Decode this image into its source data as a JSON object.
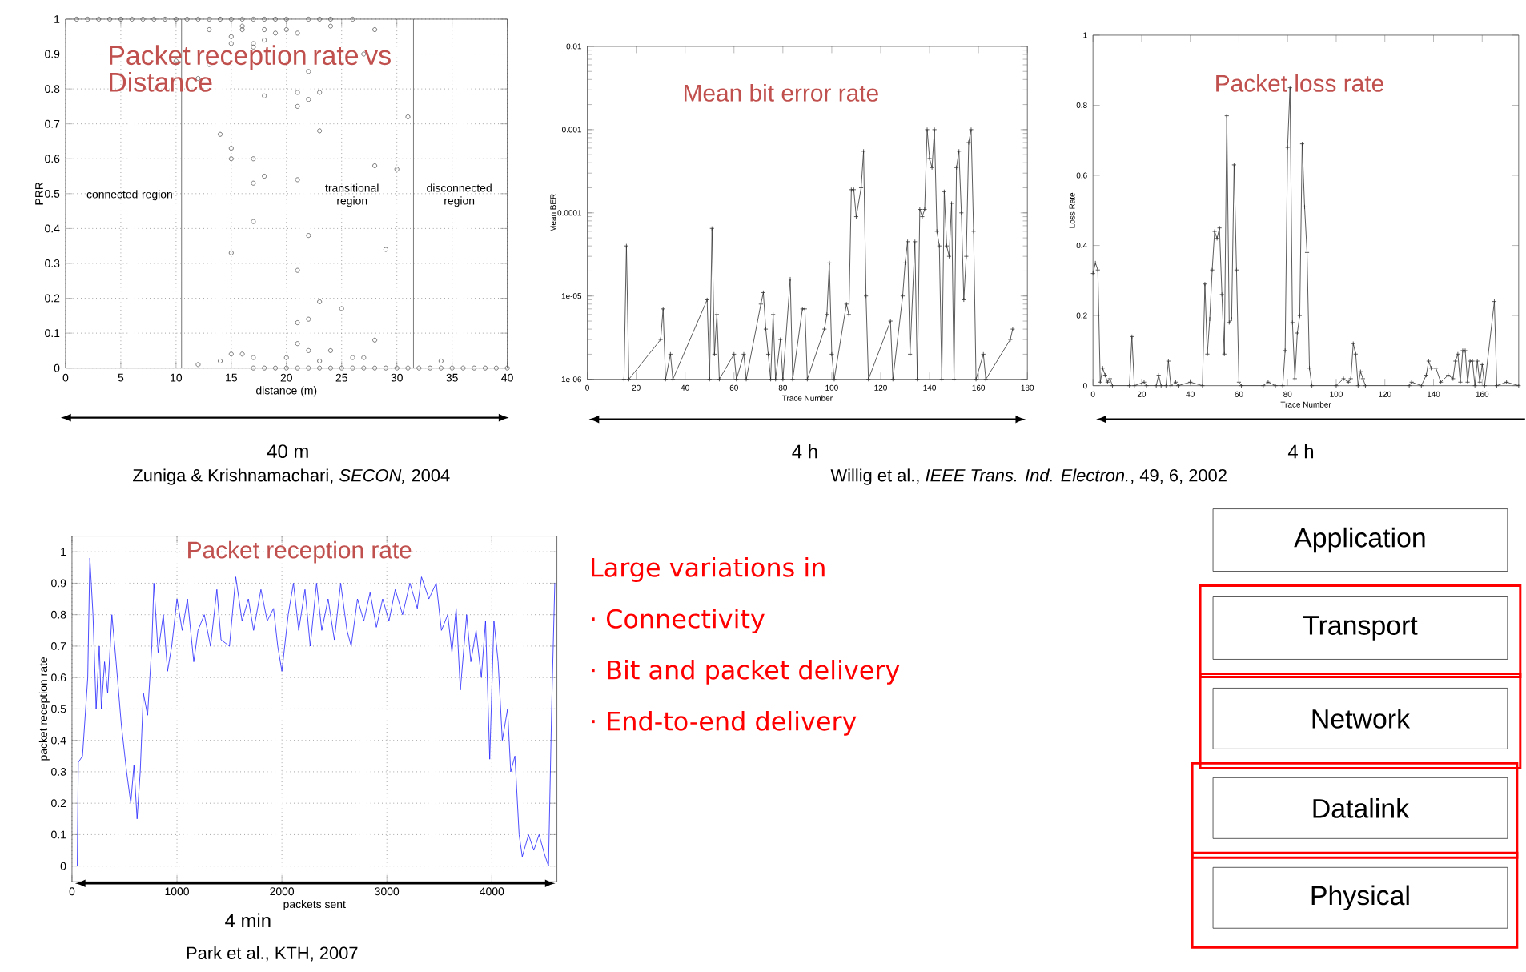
{
  "chart_data": [
    {
      "type": "scatter",
      "title": "Packet reception rate vs Distance",
      "xlabel": "distance (m)",
      "ylabel": "PRR",
      "color": "#555555",
      "marker": "circle",
      "grid": true,
      "xlim": [
        0,
        40
      ],
      "ylim": [
        0,
        1
      ],
      "xticks": [
        0,
        5,
        10,
        15,
        20,
        25,
        30,
        35,
        40
      ],
      "yticks": [
        0,
        0.1,
        0.2,
        0.3,
        0.4,
        0.5,
        0.6,
        0.7,
        0.8,
        0.9,
        1
      ],
      "ref_lines": [
        {
          "axis": "x",
          "value": 10.5
        },
        {
          "axis": "x",
          "value": 31.5
        }
      ],
      "annotations": [
        "connected region",
        "transitional region",
        "disconnected region",
        "40 m",
        "Zuniga & Krishnamachari, *SECON,* 2004"
      ],
      "x": [
        1,
        2,
        3,
        4,
        5,
        6,
        7,
        8,
        9,
        10,
        11,
        12,
        13,
        14,
        15,
        16,
        17,
        18,
        19,
        20,
        22,
        23,
        24,
        26,
        17,
        18,
        19,
        20,
        21,
        22,
        23,
        24,
        25,
        26,
        27,
        28,
        29,
        30,
        31,
        32,
        33,
        34,
        35,
        36,
        37,
        38,
        39,
        40,
        13,
        13,
        12,
        14,
        15,
        15,
        15,
        15,
        15,
        16,
        16,
        17,
        17,
        17,
        17,
        17,
        18,
        18,
        18,
        18,
        19,
        20,
        21,
        21,
        21,
        21,
        21,
        21,
        21,
        22,
        22,
        22,
        22,
        22,
        23,
        23,
        23,
        23,
        24,
        24,
        25,
        26,
        27,
        27,
        28,
        28,
        28,
        29,
        30,
        31,
        34,
        12,
        14,
        15,
        16,
        17,
        20,
        10
      ],
      "values": [
        1,
        1,
        1,
        1,
        1,
        1,
        1,
        1,
        1,
        1,
        1,
        1,
        1,
        1,
        1,
        1,
        1,
        1,
        1,
        1,
        1,
        1,
        1,
        1,
        0,
        0,
        0,
        0,
        0,
        0,
        0,
        0,
        0,
        0,
        0,
        0,
        0,
        0,
        0,
        0,
        0,
        0,
        0,
        0,
        0,
        0,
        0,
        0,
        0.97,
        0.87,
        0.83,
        0.67,
        0.95,
        0.93,
        0.63,
        0.6,
        0.33,
        0.98,
        0.97,
        0.93,
        0.92,
        0.6,
        0.53,
        0.42,
        0.97,
        0.94,
        0.78,
        0.55,
        0.96,
        0.97,
        0.96,
        0.79,
        0.75,
        0.54,
        0.28,
        0.13,
        0.07,
        0.85,
        0.77,
        0.38,
        0.14,
        0.05,
        0.79,
        0.68,
        0.19,
        0.02,
        0.98,
        0.05,
        0.17,
        0.03,
        0.9,
        0.03,
        0.97,
        0.58,
        0.08,
        0.34,
        0.57,
        0.72,
        0.02,
        0.01,
        0.02,
        0.04,
        0.04,
        0.03,
        0.03,
        0.88
      ]
    },
    {
      "type": "line",
      "title": "Mean bit error rate",
      "xlabel": "Trace Number",
      "ylabel": "Mean BER",
      "color": "#333333",
      "marker": "cross",
      "log": true,
      "xlim": [
        0,
        180
      ],
      "ylim": [
        1e-06,
        0.01
      ],
      "xticks": [
        0,
        20,
        40,
        60,
        80,
        100,
        120,
        140,
        160,
        180
      ],
      "yticks": [
        {
          "value": 1e-06,
          "label": "1e-06"
        },
        {
          "value": 1e-05,
          "label": "1e-05"
        },
        {
          "value": 0.0001,
          "label": "0.0001"
        },
        {
          "value": 0.001,
          "label": "0.001"
        },
        {
          "value": 0.01,
          "label": "0.01"
        }
      ],
      "annotations": [
        "4 h",
        "Willig et al., *IEEE Trans. Ind. Electron.*, 49, 6, 2002"
      ],
      "x": [
        15,
        16,
        17,
        30,
        31,
        32,
        34,
        35,
        49,
        50,
        51,
        52,
        53,
        54,
        60,
        61,
        64,
        65,
        71,
        72,
        73,
        74,
        75,
        76,
        77,
        79,
        80,
        83,
        84,
        88,
        89,
        90,
        97,
        98,
        99,
        100,
        101,
        106,
        107,
        108,
        109,
        110,
        112,
        113,
        114,
        115,
        124,
        125,
        129,
        130,
        131,
        132,
        134,
        135,
        136,
        137,
        138,
        139,
        140,
        141,
        142,
        143,
        144,
        145,
        146,
        147,
        148,
        149,
        150,
        151,
        152,
        153,
        154,
        155,
        156,
        157,
        158,
        159,
        162,
        163,
        173,
        174
      ],
      "values": [
        1e-06,
        4e-05,
        1e-06,
        3e-06,
        7e-06,
        1e-06,
        2e-06,
        1e-06,
        9e-06,
        1e-06,
        6.5e-05,
        2e-06,
        6e-06,
        1e-06,
        2e-06,
        1e-06,
        2e-06,
        1e-06,
        8e-06,
        1.1e-05,
        4e-06,
        2e-06,
        1e-06,
        6e-06,
        1e-06,
        3e-06,
        1e-06,
        1.6e-05,
        1e-06,
        7e-06,
        7e-06,
        1e-06,
        4e-06,
        6e-06,
        2.5e-05,
        2e-06,
        1e-06,
        8e-06,
        6e-06,
        0.00019,
        0.00019,
        9e-05,
        0.0002,
        0.00055,
        1e-05,
        1e-06,
        5e-06,
        1e-06,
        1e-05,
        2.5e-05,
        4.5e-05,
        2e-06,
        4.5e-05,
        1e-06,
        0.00011,
        9e-05,
        0.00011,
        0.001,
        0.00045,
        0.00035,
        0.001,
        6e-05,
        4e-05,
        1e-06,
        0.00018,
        4e-05,
        3e-05,
        0.00013,
        1e-06,
        0.00035,
        0.00055,
        0.0001,
        9e-06,
        3e-05,
        0.0007,
        0.001,
        6e-05,
        1e-06,
        2e-06,
        1e-06,
        3e-06,
        4e-06
      ]
    },
    {
      "type": "line",
      "title": "Packet loss rate",
      "xlabel": "Trace Number",
      "ylabel": "Loss Rate",
      "color": "#333333",
      "marker": "cross",
      "xlim": [
        0,
        175
      ],
      "ylim": [
        0,
        1
      ],
      "xticks": [
        0,
        20,
        40,
        60,
        80,
        100,
        120,
        140,
        160
      ],
      "yticks": [
        0,
        0.2,
        0.4,
        0.6,
        0.8,
        1
      ],
      "annotations": [
        "4 h"
      ],
      "x": [
        0,
        1,
        2,
        3,
        4,
        5,
        6,
        7,
        8,
        15,
        16,
        17,
        21,
        22,
        26,
        27,
        28,
        30,
        31,
        32,
        34,
        35,
        40,
        45,
        46,
        47,
        48,
        49,
        50,
        51,
        52,
        53,
        54,
        55,
        56,
        57,
        58,
        59,
        60,
        61,
        70,
        72,
        75,
        78,
        79,
        80,
        81,
        82,
        83,
        84,
        85,
        86,
        87,
        88,
        89,
        90,
        100,
        103,
        105,
        106,
        107,
        108,
        109,
        110,
        111,
        112,
        130,
        131,
        135,
        137,
        138,
        139,
        141,
        143,
        146,
        148,
        149,
        150,
        151,
        152,
        153,
        154,
        155,
        156,
        157,
        158,
        159,
        160,
        161,
        165,
        166,
        170,
        175
      ],
      "values": [
        0.32,
        0.35,
        0.33,
        0.01,
        0.05,
        0.03,
        0.01,
        0.02,
        0,
        0,
        0.14,
        0,
        0.01,
        0,
        0,
        0.03,
        0,
        0,
        0.07,
        0,
        0.01,
        0,
        0.01,
        0,
        0.29,
        0.09,
        0.19,
        0.33,
        0.44,
        0.42,
        0.45,
        0.26,
        0.09,
        0.77,
        0.18,
        0.19,
        0.63,
        0.33,
        0.01,
        0,
        0,
        0.01,
        0,
        0,
        0.1,
        0.68,
        0.85,
        0.18,
        0.02,
        0.15,
        0.2,
        0.69,
        0.51,
        0.38,
        0.05,
        0,
        0,
        0.02,
        0.01,
        0.02,
        0.12,
        0.09,
        0,
        0.04,
        0.02,
        0,
        0,
        0.01,
        0,
        0.03,
        0.07,
        0.05,
        0.05,
        0.01,
        0.03,
        0.02,
        0.07,
        0.09,
        0.01,
        0.1,
        0.1,
        0.01,
        0.07,
        0.07,
        0,
        0.07,
        0.01,
        0.06,
        0,
        0.24,
        0,
        0.01,
        0
      ]
    },
    {
      "type": "line",
      "title": "Packet reception rate",
      "xlabel": "packets sent",
      "ylabel": "packet reception rate",
      "color": "#2020ff",
      "marker": "none",
      "grid": true,
      "xlim": [
        0,
        4620
      ],
      "ylim": [
        -0.05,
        1.05
      ],
      "xticks": [
        0,
        1000,
        2000,
        3000,
        4000
      ],
      "yticks": [
        0,
        0.1,
        0.2,
        0.3,
        0.4,
        0.5,
        0.6,
        0.7,
        0.8,
        0.9,
        1
      ],
      "annotations": [
        "4 min",
        "Park et al., KTH, 2007"
      ],
      "x": [
        50,
        60,
        100,
        150,
        170,
        200,
        230,
        260,
        280,
        310,
        340,
        380,
        420,
        470,
        520,
        560,
        590,
        620,
        650,
        680,
        720,
        760,
        780,
        820,
        870,
        910,
        950,
        1000,
        1050,
        1100,
        1160,
        1200,
        1260,
        1320,
        1380,
        1420,
        1500,
        1560,
        1620,
        1680,
        1730,
        1800,
        1860,
        1920,
        1960,
        2000,
        2060,
        2110,
        2160,
        2220,
        2270,
        2330,
        2380,
        2440,
        2500,
        2560,
        2620,
        2660,
        2720,
        2780,
        2840,
        2900,
        2960,
        3020,
        3080,
        3150,
        3220,
        3290,
        3330,
        3400,
        3470,
        3520,
        3580,
        3620,
        3660,
        3700,
        3760,
        3800,
        3850,
        3900,
        3940,
        3980,
        4020,
        4060,
        4100,
        4150,
        4180,
        4220,
        4260,
        4290,
        4350,
        4400,
        4450,
        4500,
        4540,
        4570,
        4600
      ],
      "values": [
        0,
        0.33,
        0.35,
        0.6,
        0.98,
        0.8,
        0.5,
        0.7,
        0.5,
        0.65,
        0.55,
        0.8,
        0.65,
        0.45,
        0.3,
        0.2,
        0.32,
        0.15,
        0.3,
        0.55,
        0.48,
        0.7,
        0.9,
        0.68,
        0.8,
        0.62,
        0.7,
        0.85,
        0.75,
        0.85,
        0.65,
        0.75,
        0.8,
        0.7,
        0.88,
        0.72,
        0.7,
        0.92,
        0.78,
        0.85,
        0.75,
        0.88,
        0.78,
        0.82,
        0.7,
        0.62,
        0.8,
        0.9,
        0.75,
        0.88,
        0.7,
        0.9,
        0.75,
        0.85,
        0.72,
        0.9,
        0.75,
        0.7,
        0.85,
        0.78,
        0.87,
        0.76,
        0.85,
        0.78,
        0.88,
        0.8,
        0.9,
        0.82,
        0.92,
        0.85,
        0.9,
        0.75,
        0.8,
        0.68,
        0.82,
        0.56,
        0.8,
        0.65,
        0.75,
        0.6,
        0.78,
        0.34,
        0.78,
        0.65,
        0.4,
        0.5,
        0.3,
        0.35,
        0.1,
        0.03,
        0.1,
        0.05,
        0.1,
        0.04,
        0,
        0.5,
        0.9
      ]
    },
    {
      "type": "other",
      "annotations": [
        "Large variations in",
        "· Connectivity",
        "· Bit and packet delivery",
        "· End-to-end delivery",
        "Application",
        "Transport",
        "Network",
        "Datalink",
        "Physical"
      ]
    }
  ]
}
